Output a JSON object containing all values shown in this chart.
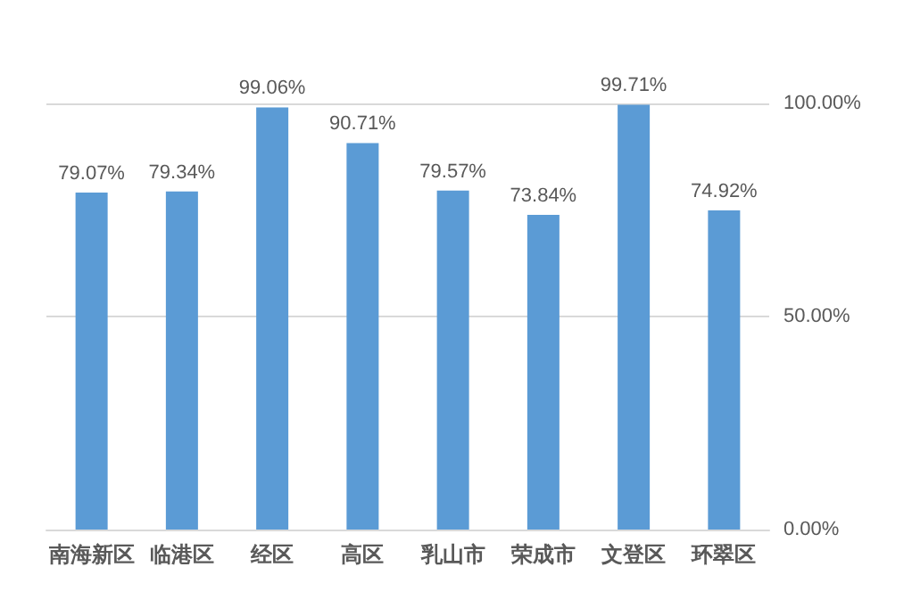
{
  "chart_data": {
    "type": "bar",
    "categories": [
      "南海新区",
      "临港区",
      "经区",
      "高区",
      "乳山市",
      "荣成市",
      "文登区",
      "环翠区"
    ],
    "values": [
      79.07,
      79.34,
      99.06,
      90.71,
      79.57,
      73.84,
      99.71,
      74.92
    ],
    "value_labels": [
      "79.07%",
      "79.34%",
      "99.06%",
      "90.71%",
      "79.57%",
      "73.84%",
      "99.71%",
      "74.92%"
    ],
    "color": "#5b9bd5",
    "ylim": [
      0,
      100
    ],
    "yticks": [
      {
        "value": 0,
        "label": "0.00%"
      },
      {
        "value": 50,
        "label": "50.00%"
      },
      {
        "value": 100,
        "label": "100.00%"
      }
    ],
    "grid": "y"
  }
}
